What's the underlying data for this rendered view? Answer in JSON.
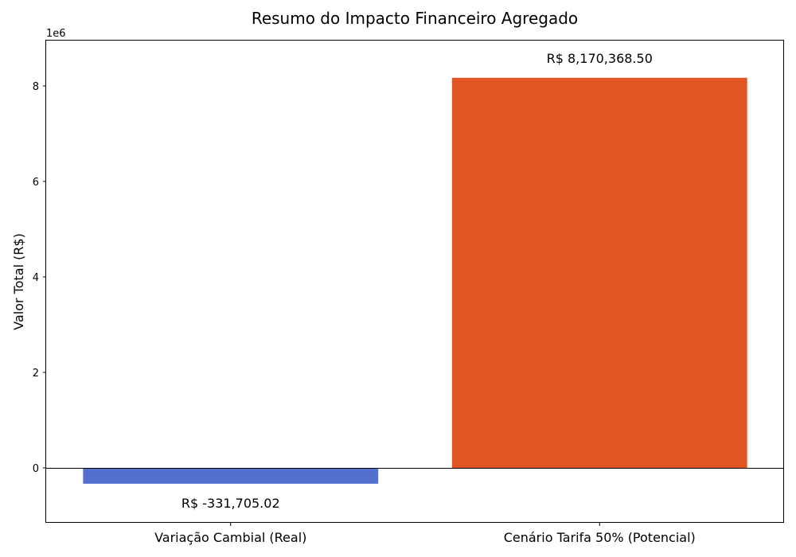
{
  "chart_data": {
    "type": "bar",
    "title": "Resumo do Impacto Financeiro Agregado",
    "xlabel": "",
    "ylabel": "Valor Total (R$)",
    "y_offset_label": "1e6",
    "categories": [
      "Variação Cambial (Real)",
      "Cenário Tarifa 50% (Potencial)"
    ],
    "values": [
      -331705.02,
      8170368.5
    ],
    "data_labels": [
      "R$ -331,705.02",
      "R$ 8,170,368.50"
    ],
    "colors": [
      "#5470cf",
      "#e05522"
    ],
    "ylim": [
      -1150000,
      8950000
    ],
    "yticks": [
      0,
      2000000,
      4000000,
      6000000,
      8000000
    ],
    "ytick_labels": [
      "0",
      "2",
      "4",
      "6",
      "8"
    ],
    "zero_line": true,
    "grid": false
  }
}
